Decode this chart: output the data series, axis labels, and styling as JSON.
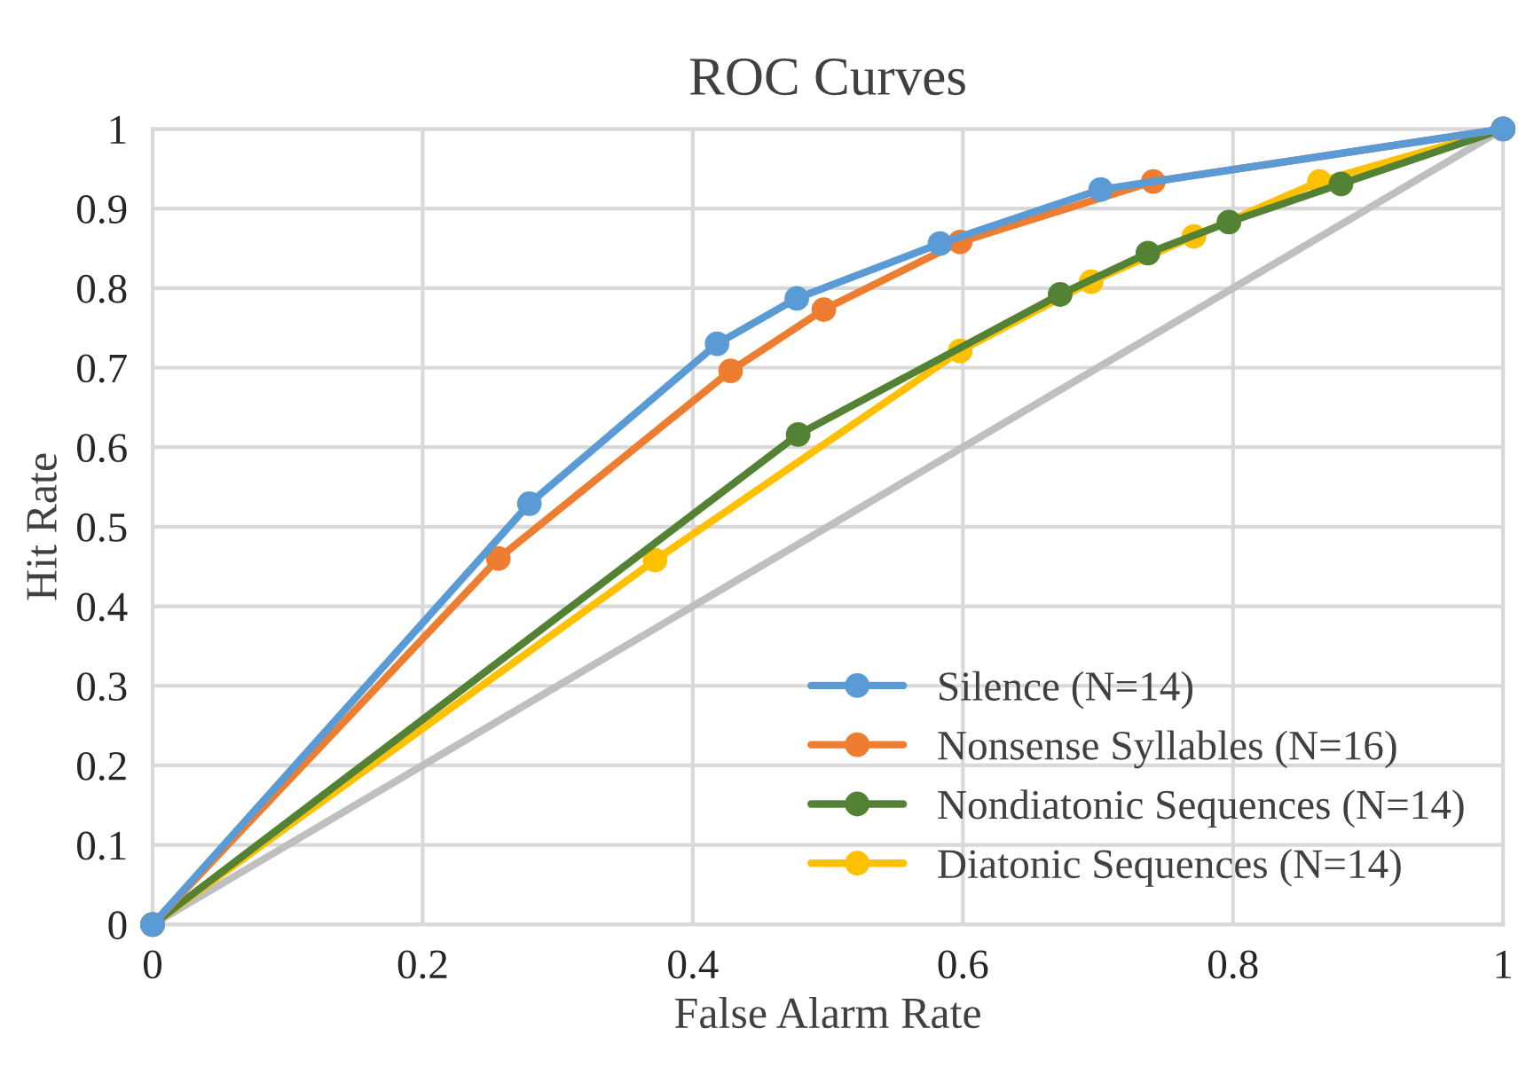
{
  "chart_data": {
    "type": "line",
    "title": "ROC Curves",
    "xlabel": "False Alarm Rate",
    "ylabel": "Hit Rate",
    "series": [
      {
        "name": "Silence (N=14)",
        "color": "#5b9bd5",
        "x": [
          0,
          0.279,
          0.418,
          0.477,
          0.583,
          0.702,
          1
        ],
        "values": [
          0,
          0.529,
          0.73,
          0.787,
          0.856,
          0.924,
          1
        ]
      },
      {
        "name": "Nonsense Syllables (N=16)",
        "color": "#ed7d31",
        "x": [
          0,
          0.256,
          0.428,
          0.497,
          0.598,
          0.741,
          1
        ],
        "values": [
          0,
          0.46,
          0.696,
          0.773,
          0.858,
          0.934,
          1
        ]
      },
      {
        "name": "Nondiatonic Sequences (N=14)",
        "color": "#548235",
        "x": [
          0,
          0.478,
          0.672,
          0.737,
          0.797,
          0.88,
          1
        ],
        "values": [
          0,
          0.616,
          0.792,
          0.844,
          0.883,
          0.931,
          1
        ]
      },
      {
        "name": "Diatonic Sequences (N=14)",
        "color": "#ffc000",
        "x": [
          0,
          0.372,
          0.598,
          0.695,
          0.771,
          0.864,
          1
        ],
        "values": [
          0,
          0.458,
          0.721,
          0.808,
          0.865,
          0.934,
          1
        ]
      },
      {
        "color": "#bfbfbf",
        "marker": "none",
        "x": [
          0,
          1
        ],
        "values": [
          0,
          1
        ]
      }
    ],
    "xlim": [
      0,
      1
    ],
    "xticks": [
      0,
      0.2,
      0.4,
      0.6,
      0.8,
      1
    ],
    "ylim": [
      0,
      1
    ],
    "yticks": [
      0,
      0.1,
      0.2,
      0.3,
      0.4,
      0.5,
      0.6,
      0.7,
      0.8,
      0.9,
      1
    ],
    "grid": true,
    "legend": "bottom right",
    "marker": "circle",
    "line_style": "solid"
  }
}
